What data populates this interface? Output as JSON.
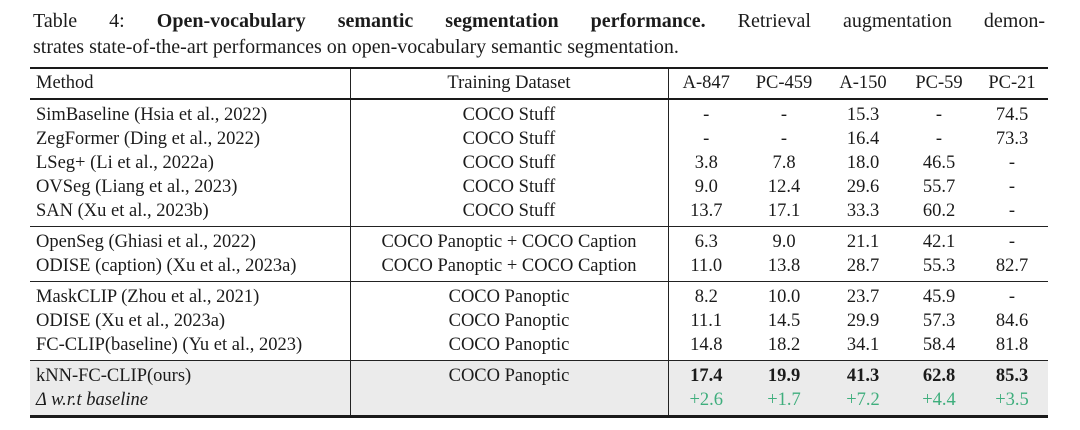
{
  "caption": {
    "label": "Table 4:",
    "title_bold": "Open-vocabulary semantic segmentation performance.",
    "line1_rest": "Retrieval augmentation demon-",
    "line2": "strates state-of-the-art performances on open-vocabulary semantic segmentation."
  },
  "table": {
    "columns": [
      "Method",
      "Training Dataset",
      "A-847",
      "PC-459",
      "A-150",
      "PC-59",
      "PC-21"
    ],
    "colors": {
      "delta_green": "#3fae7d",
      "highlight_bg": "#ebebeb",
      "rule": "#1a1a1a"
    },
    "groups": [
      {
        "rows": [
          {
            "method": "SimBaseline (Hsia et al., 2022)",
            "dataset": "COCO Stuff",
            "values": [
              "-",
              "-",
              "15.3",
              "-",
              "74.5"
            ]
          },
          {
            "method": "ZegFormer (Ding et al., 2022)",
            "dataset": "COCO Stuff",
            "values": [
              "-",
              "-",
              "16.4",
              "-",
              "73.3"
            ]
          },
          {
            "method": "LSeg+ (Li et al., 2022a)",
            "dataset": "COCO Stuff",
            "values": [
              "3.8",
              "7.8",
              "18.0",
              "46.5",
              "-"
            ]
          },
          {
            "method": "OVSeg (Liang et al., 2023)",
            "dataset": "COCO Stuff",
            "values": [
              "9.0",
              "12.4",
              "29.6",
              "55.7",
              "-"
            ]
          },
          {
            "method": "SAN (Xu et al., 2023b)",
            "dataset": "COCO Stuff",
            "values": [
              "13.7",
              "17.1",
              "33.3",
              "60.2",
              "-"
            ]
          }
        ]
      },
      {
        "rows": [
          {
            "method": "OpenSeg (Ghiasi et al., 2022)",
            "dataset": "COCO Panoptic + COCO Caption",
            "values": [
              "6.3",
              "9.0",
              "21.1",
              "42.1",
              "-"
            ]
          },
          {
            "method": "ODISE (caption) (Xu et al., 2023a)",
            "dataset": "COCO Panoptic + COCO Caption",
            "values": [
              "11.0",
              "13.8",
              "28.7",
              "55.3",
              "82.7"
            ]
          }
        ]
      },
      {
        "rows": [
          {
            "method": "MaskCLIP (Zhou et al., 2021)",
            "dataset": "COCO Panoptic",
            "values": [
              "8.2",
              "10.0",
              "23.7",
              "45.9",
              "-"
            ]
          },
          {
            "method": "ODISE (Xu et al., 2023a)",
            "dataset": "COCO Panoptic",
            "values": [
              "11.1",
              "14.5",
              "29.9",
              "57.3",
              "84.6"
            ]
          },
          {
            "method": "FC-CLIP(baseline) (Yu et al., 2023)",
            "dataset": "COCO Panoptic",
            "values": [
              "14.8",
              "18.2",
              "34.1",
              "58.4",
              "81.8"
            ]
          }
        ]
      },
      {
        "highlight": true,
        "rows": [
          {
            "method": "kNN-FC-CLIP(ours)",
            "dataset": "COCO Panoptic",
            "values": [
              "17.4",
              "19.9",
              "41.3",
              "62.8",
              "85.3"
            ],
            "values_bold": true
          },
          {
            "method": "Δ w.r.t baseline",
            "dataset": "",
            "values": [
              "+2.6",
              "+1.7",
              "+7.2",
              "+4.4",
              "+3.5"
            ],
            "delta": true
          }
        ]
      }
    ]
  }
}
